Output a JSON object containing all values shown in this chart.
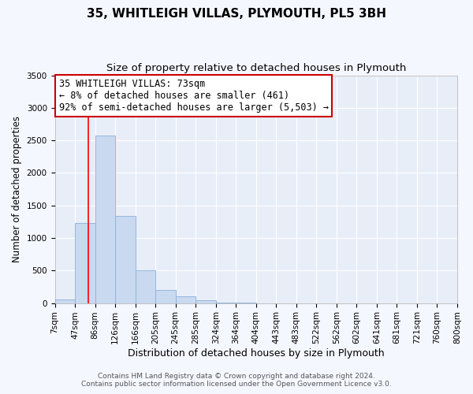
{
  "title": "35, WHITLEIGH VILLAS, PLYMOUTH, PL5 3BH",
  "subtitle": "Size of property relative to detached houses in Plymouth",
  "xlabel": "Distribution of detached houses by size in Plymouth",
  "ylabel": "Number of detached properties",
  "bin_labels": [
    "7sqm",
    "47sqm",
    "86sqm",
    "126sqm",
    "166sqm",
    "205sqm",
    "245sqm",
    "285sqm",
    "324sqm",
    "364sqm",
    "404sqm",
    "443sqm",
    "483sqm",
    "522sqm",
    "562sqm",
    "602sqm",
    "641sqm",
    "681sqm",
    "721sqm",
    "760sqm",
    "800sqm"
  ],
  "bar_heights": [
    50,
    1230,
    2580,
    1340,
    500,
    200,
    110,
    40,
    5,
    2,
    0,
    0,
    0,
    0,
    0,
    0,
    0,
    0,
    0,
    0
  ],
  "bar_color": "#c9d9f0",
  "bar_edge_color": "#8ab0d8",
  "ylim": [
    0,
    3500
  ],
  "yticks": [
    0,
    500,
    1000,
    1500,
    2000,
    2500,
    3000,
    3500
  ],
  "red_line_x": 73,
  "bin_starts": [
    7,
    47,
    86,
    126,
    166,
    205,
    245,
    285,
    324,
    364,
    404,
    443,
    483,
    522,
    562,
    602,
    641,
    681,
    721,
    760,
    800
  ],
  "annotation_line1": "35 WHITLEIGH VILLAS: 73sqm",
  "annotation_line2": "← 8% of detached houses are smaller (461)",
  "annotation_line3": "92% of semi-detached houses are larger (5,503) →",
  "annotation_box_color": "#ffffff",
  "annotation_box_edge_color": "#cc0000",
  "footer_line1": "Contains HM Land Registry data © Crown copyright and database right 2024.",
  "footer_line2": "Contains public sector information licensed under the Open Government Licence v3.0.",
  "background_color": "#f5f7ff",
  "plot_bg_color": "#e8eef8",
  "grid_color": "#ffffff",
  "title_fontsize": 11,
  "subtitle_fontsize": 9.5,
  "xlabel_fontsize": 9,
  "ylabel_fontsize": 8.5,
  "tick_fontsize": 7.5,
  "annotation_fontsize": 8.5,
  "footer_fontsize": 6.5
}
